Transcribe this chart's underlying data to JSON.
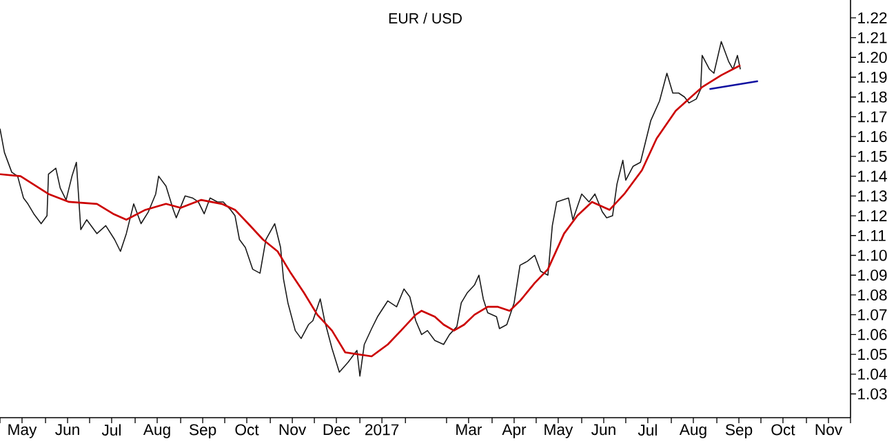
{
  "chart_data": {
    "type": "line",
    "title": "EUR / USD",
    "series": [
      {
        "color": "#1a1a1a",
        "x": [
          "2016-05-01",
          "2016-05-04",
          "2016-05-09",
          "2016-05-13",
          "2016-05-17",
          "2016-05-20",
          "2016-05-24",
          "2016-05-29",
          "2016-06-02",
          "2016-06-03",
          "2016-06-08",
          "2016-06-11",
          "2016-06-15",
          "2016-06-19",
          "2016-06-22",
          "2016-06-25",
          "2016-06-29",
          "2016-07-06",
          "2016-07-12",
          "2016-07-18",
          "2016-07-22",
          "2016-07-26",
          "2016-07-31",
          "2016-08-05",
          "2016-08-10",
          "2016-08-15",
          "2016-08-17",
          "2016-08-22",
          "2016-08-27",
          "2016-08-29",
          "2016-09-04",
          "2016-09-09",
          "2016-09-13",
          "2016-09-17",
          "2016-09-21",
          "2016-09-26",
          "2016-09-30",
          "2016-10-05",
          "2016-10-08",
          "2016-10-11",
          "2016-10-15",
          "2016-10-20",
          "2016-10-25",
          "2016-10-29",
          "2016-11-04",
          "2016-11-08",
          "2016-11-10",
          "2016-11-13",
          "2016-11-18",
          "2016-11-22",
          "2016-11-27",
          "2016-11-30",
          "2016-12-05",
          "2016-12-08",
          "2016-12-13",
          "2016-12-18",
          "2016-12-24",
          "2016-12-30",
          "2017-01-01",
          "2017-01-04",
          "2017-01-09",
          "2017-01-13",
          "2017-01-20",
          "2017-01-26",
          "2017-01-31",
          "2017-02-04",
          "2017-02-08",
          "2017-02-12",
          "2017-02-16",
          "2017-02-21",
          "2017-02-27",
          "2017-03-03",
          "2017-03-08",
          "2017-03-11",
          "2017-03-15",
          "2017-03-20",
          "2017-03-23",
          "2017-03-26",
          "2017-03-29",
          "2017-04-04",
          "2017-04-06",
          "2017-04-11",
          "2017-04-16",
          "2017-04-20",
          "2017-04-25",
          "2017-04-30",
          "2017-05-04",
          "2017-05-09",
          "2017-05-12",
          "2017-05-15",
          "2017-05-23",
          "2017-05-26",
          "2017-06-01",
          "2017-06-06",
          "2017-06-10",
          "2017-06-15",
          "2017-06-18",
          "2017-06-22",
          "2017-06-25",
          "2017-06-29",
          "2017-07-01",
          "2017-07-06",
          "2017-07-11",
          "2017-07-15",
          "2017-07-18",
          "2017-07-24",
          "2017-07-29",
          "2017-08-02",
          "2017-08-06",
          "2017-08-10",
          "2017-08-13",
          "2017-08-18",
          "2017-08-21",
          "2017-08-22",
          "2017-08-27",
          "2017-08-30",
          "2017-09-04",
          "2017-09-09",
          "2017-09-12",
          "2017-09-15",
          "2017-09-17"
        ],
        "values": [
          1.164,
          1.152,
          1.142,
          1.14,
          1.129,
          1.126,
          1.121,
          1.116,
          1.12,
          1.141,
          1.144,
          1.134,
          1.128,
          1.14,
          1.147,
          1.113,
          1.118,
          1.111,
          1.115,
          1.108,
          1.102,
          1.111,
          1.126,
          1.116,
          1.122,
          1.131,
          1.14,
          1.135,
          1.123,
          1.119,
          1.13,
          1.129,
          1.127,
          1.121,
          1.129,
          1.127,
          1.127,
          1.123,
          1.12,
          1.108,
          1.104,
          1.093,
          1.091,
          1.108,
          1.116,
          1.104,
          1.088,
          1.076,
          1.062,
          1.058,
          1.065,
          1.067,
          1.078,
          1.067,
          1.053,
          1.041,
          1.046,
          1.052,
          1.039,
          1.055,
          1.063,
          1.069,
          1.077,
          1.074,
          1.083,
          1.079,
          1.067,
          1.06,
          1.062,
          1.057,
          1.055,
          1.06,
          1.064,
          1.076,
          1.081,
          1.085,
          1.09,
          1.078,
          1.071,
          1.069,
          1.063,
          1.065,
          1.076,
          1.095,
          1.097,
          1.1,
          1.092,
          1.09,
          1.115,
          1.127,
          1.129,
          1.118,
          1.131,
          1.127,
          1.131,
          1.122,
          1.119,
          1.12,
          1.136,
          1.148,
          1.138,
          1.145,
          1.147,
          1.159,
          1.168,
          1.178,
          1.192,
          1.182,
          1.182,
          1.18,
          1.177,
          1.179,
          1.184,
          1.201,
          1.194,
          1.192,
          1.208,
          1.198,
          1.194,
          1.201,
          1.194
        ]
      },
      {
        "color": "#cc0000",
        "x": [
          "2016-05-01",
          "2016-05-15",
          "2016-06-03",
          "2016-06-17",
          "2016-07-06",
          "2016-07-17",
          "2016-07-26",
          "2016-08-08",
          "2016-08-22",
          "2016-09-01",
          "2016-09-15",
          "2016-09-29",
          "2016-10-08",
          "2016-10-17",
          "2016-10-27",
          "2016-11-06",
          "2016-11-15",
          "2016-11-24",
          "2016-12-03",
          "2016-12-13",
          "2016-12-22",
          "2017-01-09",
          "2017-01-20",
          "2017-01-29",
          "2017-02-08",
          "2017-02-12",
          "2017-02-21",
          "2017-02-27",
          "2017-03-06",
          "2017-03-13",
          "2017-03-20",
          "2017-03-29",
          "2017-04-05",
          "2017-04-13",
          "2017-04-20",
          "2017-04-30",
          "2017-05-09",
          "2017-05-20",
          "2017-05-29",
          "2017-06-08",
          "2017-06-20",
          "2017-06-30",
          "2017-07-12",
          "2017-07-22",
          "2017-08-04",
          "2017-08-13",
          "2017-08-22",
          "2017-09-04",
          "2017-09-17"
        ],
        "values": [
          1.141,
          1.14,
          1.131,
          1.127,
          1.126,
          1.121,
          1.118,
          1.123,
          1.126,
          1.124,
          1.128,
          1.126,
          1.123,
          1.116,
          1.108,
          1.102,
          1.091,
          1.081,
          1.07,
          1.062,
          1.051,
          1.049,
          1.055,
          1.062,
          1.07,
          1.072,
          1.069,
          1.065,
          1.062,
          1.065,
          1.07,
          1.074,
          1.074,
          1.072,
          1.077,
          1.086,
          1.093,
          1.111,
          1.12,
          1.127,
          1.123,
          1.131,
          1.143,
          1.159,
          1.173,
          1.179,
          1.185,
          1.191,
          1.196
        ]
      },
      {
        "color": "#1010a0",
        "x": [
          "2017-08-27",
          "2017-09-29"
        ],
        "values": [
          1.184,
          1.188
        ]
      }
    ],
    "xlim": [
      "2016-05-01",
      "2017-12-01"
    ],
    "ylim": [
      1.018,
      1.229
    ],
    "xticks": [
      {
        "value": "2016-05-01",
        "label": null
      },
      {
        "value": "2016-05-16",
        "label": "May"
      },
      {
        "value": "2016-06-01",
        "label": null
      },
      {
        "value": "2016-06-16",
        "label": "Jun"
      },
      {
        "value": "2016-07-01",
        "label": null
      },
      {
        "value": "2016-07-16",
        "label": "Jul"
      },
      {
        "value": "2016-08-01",
        "label": null
      },
      {
        "value": "2016-08-16",
        "label": "Aug"
      },
      {
        "value": "2016-09-01",
        "label": null
      },
      {
        "value": "2016-09-16",
        "label": "Sep"
      },
      {
        "value": "2016-10-01",
        "label": null
      },
      {
        "value": "2016-10-16",
        "label": "Oct"
      },
      {
        "value": "2016-11-01",
        "label": null
      },
      {
        "value": "2016-11-16",
        "label": "Nov"
      },
      {
        "value": "2016-12-01",
        "label": null
      },
      {
        "value": "2016-12-16",
        "label": "Dec"
      },
      {
        "value": "2017-01-01",
        "label": null
      },
      {
        "value": "2017-01-16",
        "label": "2017"
      },
      {
        "value": "2017-02-01",
        "label": null
      },
      {
        "value": "2017-03-01",
        "label": null
      },
      {
        "value": "2017-03-16",
        "label": "Mar"
      },
      {
        "value": "2017-04-01",
        "label": null
      },
      {
        "value": "2017-04-16",
        "label": "Apr"
      },
      {
        "value": "2017-05-01",
        "label": null
      },
      {
        "value": "2017-05-16",
        "label": "May"
      },
      {
        "value": "2017-06-01",
        "label": null
      },
      {
        "value": "2017-06-16",
        "label": "Jun"
      },
      {
        "value": "2017-07-01",
        "label": null
      },
      {
        "value": "2017-07-16",
        "label": "Jul"
      },
      {
        "value": "2017-08-01",
        "label": null
      },
      {
        "value": "2017-08-16",
        "label": "Aug"
      },
      {
        "value": "2017-09-01",
        "label": null
      },
      {
        "value": "2017-09-16",
        "label": "Sep"
      },
      {
        "value": "2017-10-01",
        "label": null
      },
      {
        "value": "2017-10-16",
        "label": "Oct"
      },
      {
        "value": "2017-11-01",
        "label": null
      },
      {
        "value": "2017-11-16",
        "label": "Nov"
      },
      {
        "value": "2017-12-01",
        "label": null
      }
    ],
    "yticks": [
      1.03,
      1.04,
      1.05,
      1.06,
      1.07,
      1.08,
      1.09,
      {
        "value": 1.1,
        "label": "1.10"
      },
      1.11,
      1.12,
      1.13,
      1.14,
      1.15,
      1.16,
      1.17,
      1.18,
      1.19,
      {
        "value": 1.2,
        "label": "1.20"
      },
      1.21,
      1.22
    ]
  }
}
